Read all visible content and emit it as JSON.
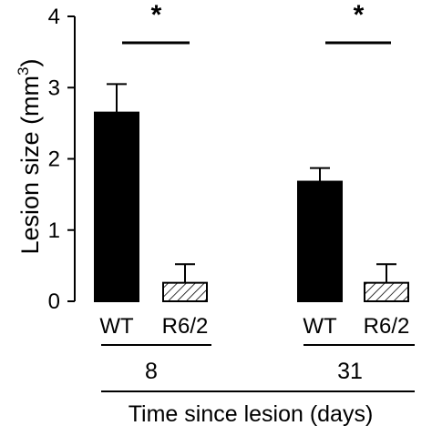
{
  "chart_data": {
    "type": "bar",
    "ylabel": "Lesion size (mm",
    "ylabel_superscript": "3",
    "ylabel_close": ")",
    "ylim": [
      0,
      4
    ],
    "yticks": [
      "0",
      "1",
      "2",
      "3",
      "4"
    ],
    "xlabel": "Time since lesion (days)",
    "grid": false,
    "groups": [
      {
        "label": "8",
        "bars": [
          {
            "label": "WT",
            "value": 2.65,
            "error": 0.4,
            "fill": "solid"
          },
          {
            "label": "R6/2",
            "value": 0.26,
            "error": 0.26,
            "fill": "hatched"
          }
        ],
        "significance": "*"
      },
      {
        "label": "31",
        "bars": [
          {
            "label": "WT",
            "value": 1.68,
            "error": 0.19,
            "fill": "solid"
          },
          {
            "label": "R6/2",
            "value": 0.26,
            "error": 0.26,
            "fill": "hatched"
          }
        ],
        "significance": "*"
      }
    ]
  },
  "colors": {
    "ink": "#000000",
    "background": "#ffffff"
  }
}
